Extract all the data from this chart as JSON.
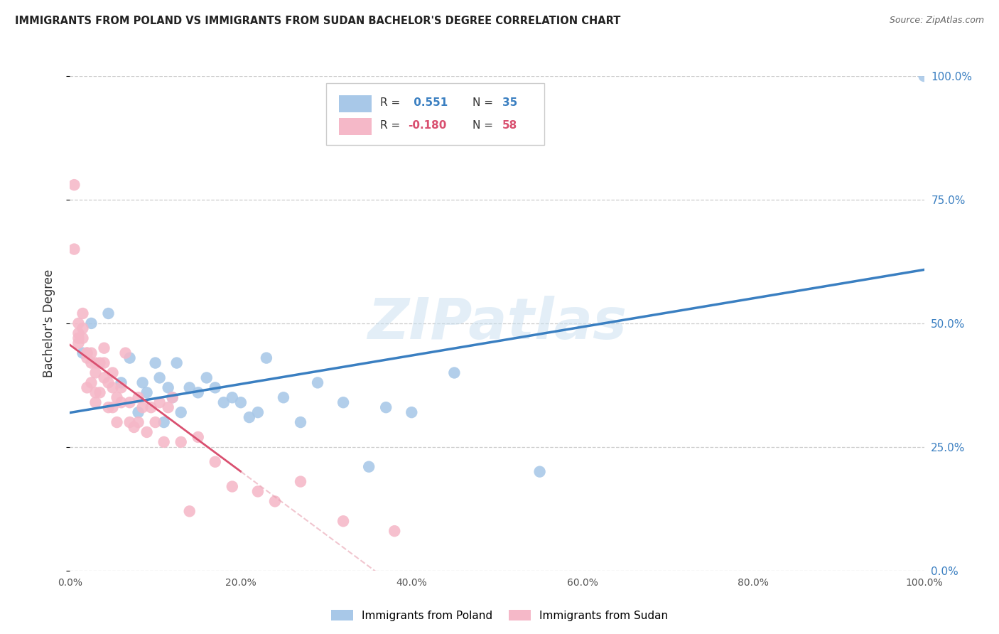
{
  "title": "IMMIGRANTS FROM POLAND VS IMMIGRANTS FROM SUDAN BACHELOR'S DEGREE CORRELATION CHART",
  "source": "Source: ZipAtlas.com",
  "ylabel": "Bachelor's Degree",
  "ytick_vals": [
    0,
    25,
    50,
    75,
    100
  ],
  "legend_labels": [
    "Immigrants from Poland",
    "Immigrants from Sudan"
  ],
  "blue_dot_color": "#a8c8e8",
  "pink_dot_color": "#f5b8c8",
  "blue_line_color": "#3a7fc1",
  "pink_line_color": "#d95070",
  "pink_dash_color": "#e8a0b0",
  "watermark_color": "#c8dff0",
  "background": "#ffffff",
  "grid_color": "#cccccc",
  "R_poland": 0.551,
  "N_poland": 35,
  "R_sudan": -0.18,
  "N_sudan": 58,
  "poland_x": [
    1.5,
    2.5,
    4.5,
    6,
    7,
    8,
    8.5,
    9,
    10,
    10.5,
    11,
    11.5,
    12,
    12.5,
    13,
    14,
    15,
    16,
    17,
    18,
    19,
    20,
    21,
    22,
    23,
    25,
    27,
    29,
    32,
    35,
    37,
    40,
    45,
    55,
    100
  ],
  "poland_y": [
    44,
    50,
    52,
    38,
    43,
    32,
    38,
    36,
    42,
    39,
    30,
    37,
    35,
    42,
    32,
    37,
    36,
    39,
    37,
    34,
    35,
    34,
    31,
    32,
    43,
    35,
    30,
    38,
    34,
    21,
    33,
    32,
    40,
    20,
    100
  ],
  "sudan_x": [
    0.5,
    0.5,
    1,
    1,
    1,
    1,
    1.5,
    1.5,
    1.5,
    2,
    2,
    2,
    2,
    2.5,
    2.5,
    2.5,
    3,
    3,
    3,
    3,
    3.5,
    3.5,
    4,
    4,
    4,
    4.5,
    4.5,
    5,
    5,
    5,
    5.5,
    5.5,
    6,
    6,
    6.5,
    7,
    7,
    7.5,
    8,
    8,
    8.5,
    9,
    9.5,
    10,
    10.5,
    11,
    11.5,
    12,
    13,
    14,
    15,
    17,
    19,
    22,
    24,
    27,
    32,
    38
  ],
  "sudan_y": [
    78,
    65,
    48,
    50,
    47,
    46,
    52,
    49,
    47,
    44,
    44,
    43,
    37,
    44,
    42,
    38,
    42,
    40,
    36,
    34,
    42,
    36,
    45,
    42,
    39,
    38,
    33,
    40,
    37,
    33,
    35,
    30,
    37,
    34,
    44,
    34,
    30,
    29,
    35,
    30,
    33,
    28,
    33,
    30,
    34,
    26,
    33,
    35,
    26,
    12,
    27,
    22,
    17,
    16,
    14,
    18,
    10,
    8
  ]
}
